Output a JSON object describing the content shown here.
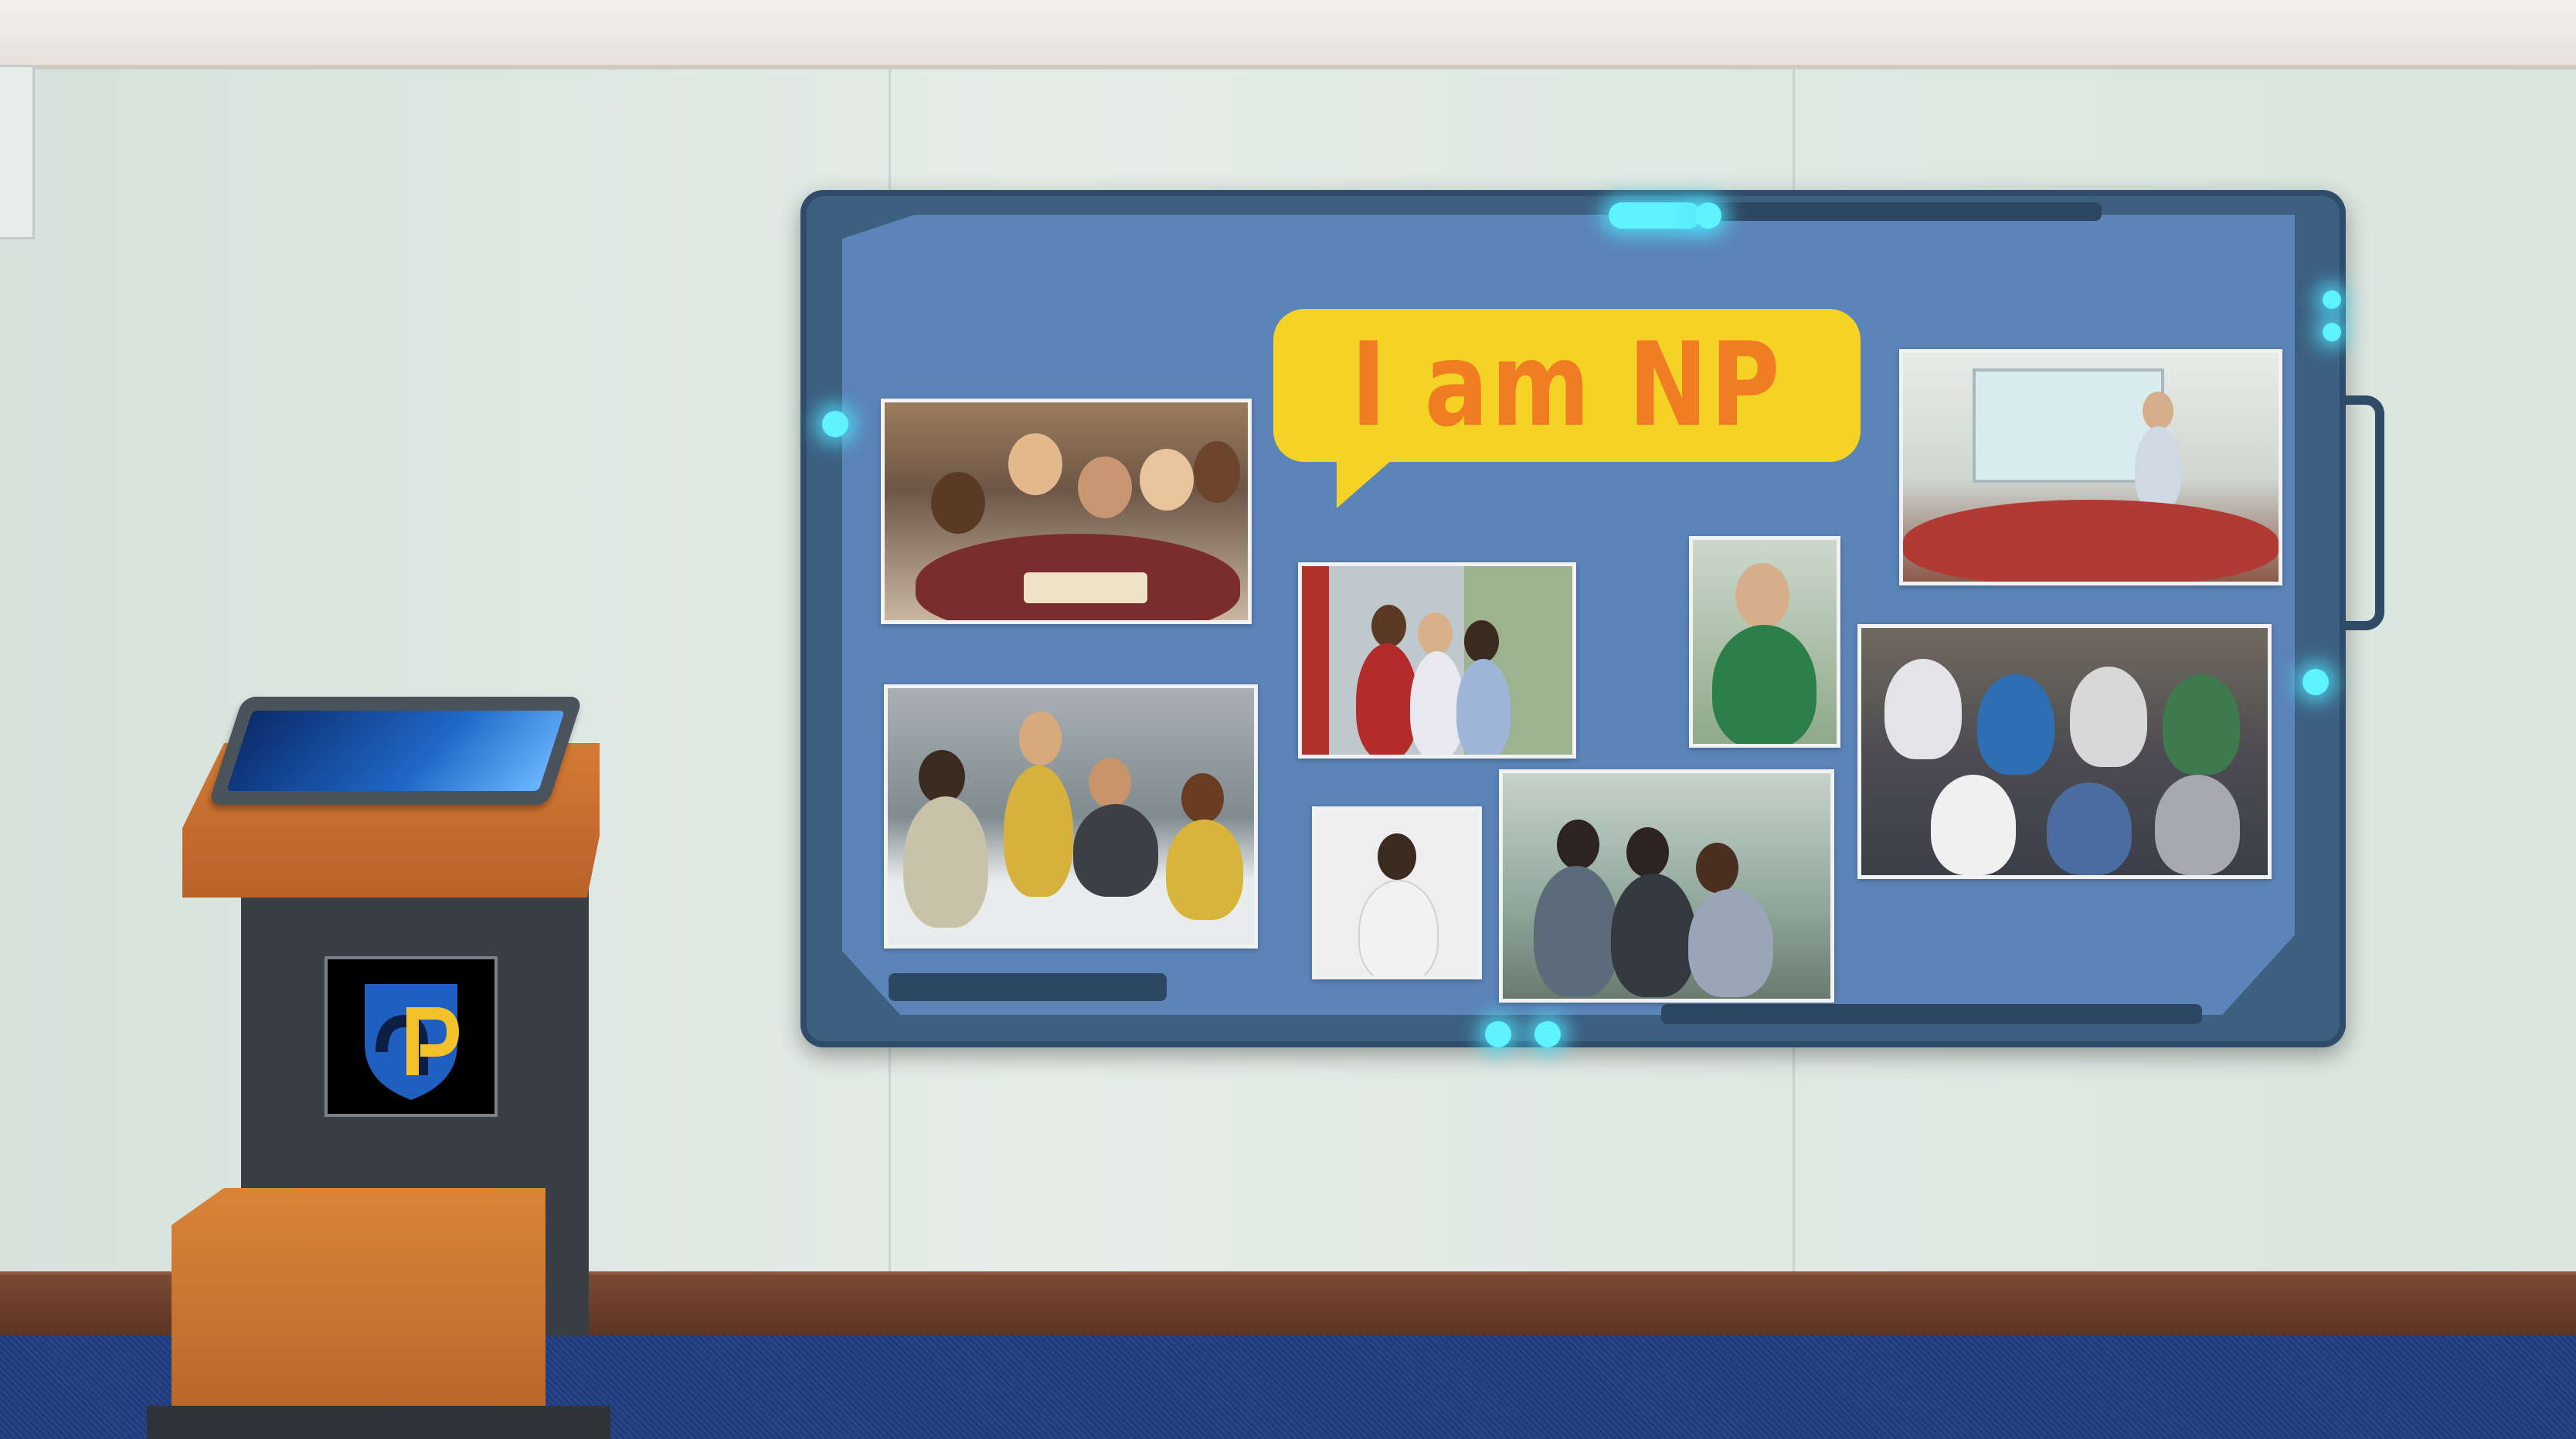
{
  "scene": {
    "board": {
      "speech_bubble_text": "I am NP",
      "photos": [
        "students-reading-library",
        "students-study-table-library",
        "students-outdoors-walkway",
        "student-portrait-green-shirt",
        "classroom-presentation",
        "student-portrait-backpack",
        "students-sitting-outdoors-laptops",
        "students-group-circle-floor"
      ],
      "colors": {
        "frame": "#3d5f80",
        "panel": "#5b84b8",
        "bubble": "#f4d326",
        "bubble_text": "#f07c24",
        "glow": "#5ff2ff"
      }
    },
    "kiosk": {
      "screen_icon": "windows-desktop-icon",
      "logo": "np-shield-logo-icon",
      "logo_colors": {
        "shield": "#1f5fbf",
        "letter": "#f3c22b"
      }
    }
  }
}
